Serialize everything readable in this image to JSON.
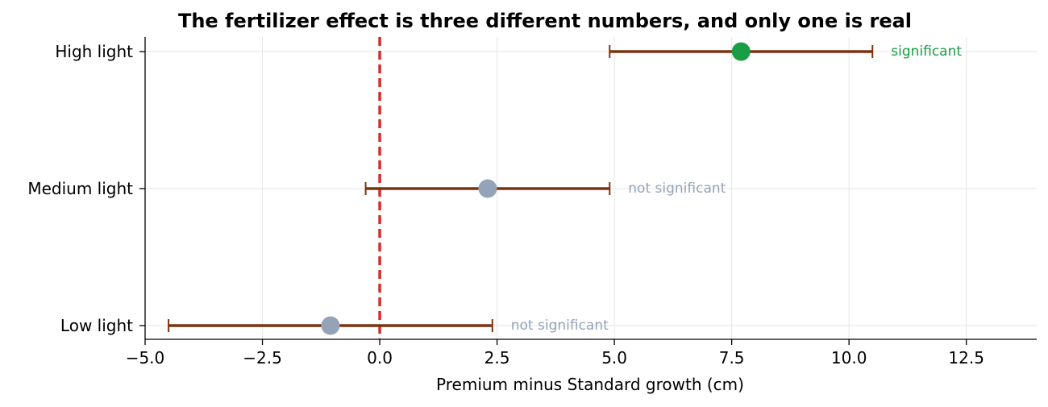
{
  "chart_data": {
    "type": "forest",
    "title": "The fertilizer effect is three different numbers, and only one is real",
    "xlabel": "Premium minus Standard growth (cm)",
    "xlim": [
      -5.0,
      14.0
    ],
    "xticks": [
      -5.0,
      -2.5,
      0.0,
      2.5,
      5.0,
      7.5,
      10.0,
      12.5
    ],
    "xtick_labels": [
      "−5.0",
      "−2.5",
      "0.0",
      "2.5",
      "5.0",
      "7.5",
      "10.0",
      "12.5"
    ],
    "reference_line": 0.0,
    "grid": true,
    "rows": [
      {
        "label": "High light",
        "estimate": 7.7,
        "ci_low": 4.9,
        "ci_high": 10.5,
        "annotation": "significant",
        "color": "#1a9e45"
      },
      {
        "label": "Medium light",
        "estimate": 2.3,
        "ci_low": -0.3,
        "ci_high": 4.9,
        "annotation": "not significant",
        "color": "#94a3b8"
      },
      {
        "label": "Low light",
        "estimate": -1.05,
        "ci_low": -4.5,
        "ci_high": 2.4,
        "annotation": "not significant",
        "color": "#94a3b8"
      }
    ],
    "colors": {
      "errorbar": "#7a3310",
      "reference": "#d62c2c",
      "grid": "#e6e6e6",
      "axis": "#000000"
    }
  }
}
